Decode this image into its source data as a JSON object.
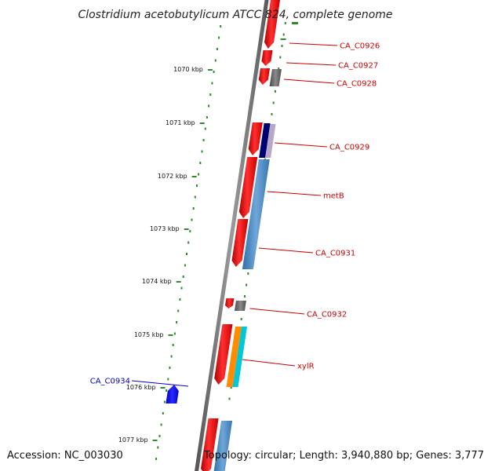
{
  "title": "Clostridium acetobutylicum ATCC 824, complete genome",
  "footer": {
    "accession": "Accession: NC_003030",
    "topology": "Topology: circular; Length: 3,940,880 bp; Genes: 3,777"
  },
  "colors": {
    "backbone": "#7a7a7a",
    "tick_dots": "#2e8b2e",
    "cds_forward": "#ff1a1a",
    "gene_label_forward": "#cc0000",
    "gene_label_reverse": "#0000cc",
    "rna_grey": "#707070",
    "navy": "#000070",
    "lilac": "#b8a8c8",
    "steel_blue": "#4a86c0",
    "orange": "#ff8c00",
    "cyan": "#00c8d8",
    "reverse_cds": "#0000ff"
  },
  "scale_ticks": [
    {
      "label": "1070 kbp"
    },
    {
      "label": "1071 kbp"
    },
    {
      "label": "1072 kbp"
    },
    {
      "label": "1073 kbp"
    },
    {
      "label": "1074 kbp"
    },
    {
      "label": "1075 kbp"
    },
    {
      "label": "1076 kbp"
    },
    {
      "label": "1077 kbp"
    }
  ],
  "genes": [
    {
      "name": "CA_C0926",
      "strand": "forward"
    },
    {
      "name": "CA_C0927",
      "strand": "forward"
    },
    {
      "name": "CA_C0928",
      "strand": "forward"
    },
    {
      "name": "CA_C0929",
      "strand": "forward"
    },
    {
      "name": "metB",
      "strand": "forward"
    },
    {
      "name": "CA_C0931",
      "strand": "forward"
    },
    {
      "name": "CA_C0932",
      "strand": "forward"
    },
    {
      "name": "xylR",
      "strand": "forward"
    },
    {
      "name": "CA_C0934",
      "strand": "reverse"
    }
  ]
}
